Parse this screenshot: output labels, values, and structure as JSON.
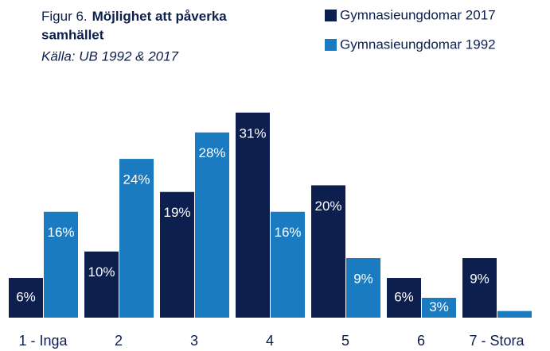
{
  "chart_data": {
    "type": "bar",
    "title_prefix": "Figur 6.",
    "title": "Möjlighet att påverka samhället",
    "subtitle": "Källa: UB 1992 & 2017",
    "categories": [
      "1 - Inga",
      "2",
      "3",
      "4",
      "5",
      "6",
      "7 - Stora"
    ],
    "series": [
      {
        "name": "Gymnasieungdomar 2017",
        "color": "#0c1f4f",
        "values": [
          6,
          10,
          19,
          31,
          20,
          6,
          9
        ],
        "value_labels": [
          "6%",
          "10%",
          "19%",
          "31%",
          "20%",
          "6%",
          "9%"
        ]
      },
      {
        "name": "Gymnasieungdomar 1992",
        "color": "#1b7bc0",
        "values": [
          16,
          24,
          28,
          16,
          9,
          3,
          1
        ],
        "value_labels": [
          "16%",
          "24%",
          "28%",
          "16%",
          "9%",
          "3%",
          null
        ]
      }
    ],
    "legend": "top-right"
  }
}
